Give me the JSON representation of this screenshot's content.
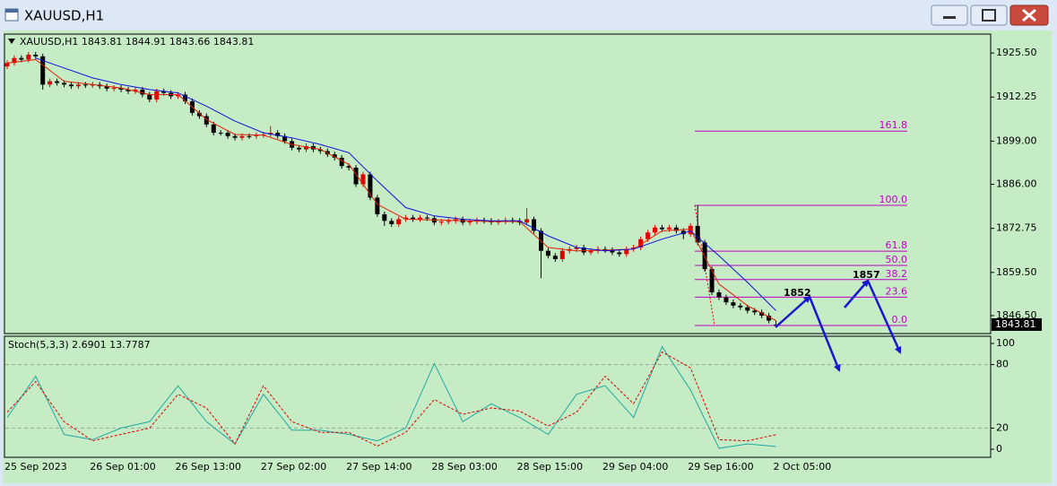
{
  "window": {
    "title": "XAUUSD,H1"
  },
  "chart_data": [
    {
      "type": "candlestick",
      "title": "XAUUSD,H1  1843.81 1844.91 1843.66 1843.81",
      "categories": [
        "25 Sep 2023",
        null,
        null,
        null,
        null,
        null,
        null,
        null,
        null,
        null,
        null,
        null,
        "26 Sep 01:00",
        null,
        null,
        null,
        null,
        null,
        null,
        null,
        null,
        null,
        null,
        null,
        "26 Sep 13:00",
        null,
        null,
        null,
        null,
        null,
        null,
        null,
        null,
        null,
        null,
        null,
        "27 Sep 02:00",
        null,
        null,
        null,
        null,
        null,
        null,
        null,
        null,
        null,
        null,
        null,
        "27 Sep 14:00",
        null,
        null,
        null,
        null,
        null,
        null,
        null,
        null,
        null,
        null,
        null,
        "28 Sep 03:00",
        null,
        null,
        null,
        null,
        null,
        null,
        null,
        null,
        null,
        null,
        null,
        "28 Sep 15:00",
        null,
        null,
        null,
        null,
        null,
        null,
        null,
        null,
        null,
        null,
        null,
        "29 Sep 04:00",
        null,
        null,
        null,
        null,
        null,
        null,
        null,
        null,
        null,
        null,
        null,
        "29 Sep 16:00",
        null,
        null,
        null,
        null,
        null,
        null,
        null,
        null,
        null,
        null,
        null,
        "2 Oct 05:00"
      ],
      "open": [
        1921.5,
        1922.5,
        1924.0,
        1923.5,
        1925.0,
        1924.5,
        1916.0,
        1917.0,
        1916.5,
        1916.0,
        1915.5,
        1916.0,
        1915.8,
        1916.0,
        1915.5,
        1914.8,
        1915.0,
        1914.5,
        1914.0,
        1914.5,
        1913.0,
        1911.5,
        1914.0,
        1913.5,
        1912.5,
        1913.0,
        1911.0,
        1907.5,
        1906.5,
        1904.0,
        1901.5,
        1901.5,
        1900.5,
        1900.0,
        1900.5,
        1900.5,
        1900.8,
        1901.0,
        1901.5,
        1900.5,
        1899.0,
        1897.0,
        1896.5,
        1897.5,
        1896.5,
        1896.0,
        1895.0,
        1894.0,
        1891.5,
        1891.0,
        1886.0,
        1889.0,
        1882.0,
        1877.0,
        1875.0,
        1874.0,
        1875.5,
        1876.0,
        1875.5,
        1876.0,
        1875.8,
        1874.5,
        1874.8,
        1875.0,
        1875.5,
        1874.5,
        1874.8,
        1875.2,
        1875.0,
        1874.6,
        1874.8,
        1875.2,
        1875.0,
        1874.5,
        1875.5,
        1872.0,
        1866.0,
        1864.5,
        1863.5,
        1866.0,
        1866.5,
        1867.0,
        1865.5,
        1866.0,
        1866.5,
        1866.2,
        1865.5,
        1865.0,
        1866.5,
        1867.0,
        1869.5,
        1871.5,
        1873.0,
        1872.5,
        1873.0,
        1872.0,
        1871.0,
        1873.5,
        1868.5,
        1860.5,
        1853.5,
        1852.0,
        1850.5,
        1849.5,
        1849.0,
        1848.0,
        1847.5,
        1846.5,
        1843.81
      ],
      "high": [
        1923.3,
        1924.8,
        1924.8,
        1925.8,
        1925.8,
        1925.3,
        1917.8,
        1917.8,
        1917.3,
        1916.8,
        1916.8,
        1916.8,
        1916.8,
        1916.8,
        1916.3,
        1915.8,
        1915.8,
        1915.3,
        1915.3,
        1915.3,
        1913.8,
        1914.8,
        1914.8,
        1914.3,
        1913.8,
        1913.8,
        1911.8,
        1908.3,
        1907.3,
        1904.8,
        1902.3,
        1902.3,
        1901.3,
        1901.3,
        1901.3,
        1901.6,
        1901.8,
        1903.5,
        1902.3,
        1901.3,
        1899.8,
        1897.8,
        1898.3,
        1898.3,
        1897.3,
        1896.8,
        1895.8,
        1894.8,
        1892.3,
        1891.8,
        1889.8,
        1889.8,
        1882.8,
        1877.8,
        1875.8,
        1876.3,
        1876.8,
        1876.8,
        1876.8,
        1876.8,
        1876.6,
        1875.6,
        1875.8,
        1876.3,
        1876.3,
        1875.6,
        1876.0,
        1876.0,
        1875.8,
        1875.6,
        1876.0,
        1876.0,
        1875.8,
        1878.8,
        1876.3,
        1872.8,
        1866.8,
        1865.3,
        1866.8,
        1867.3,
        1867.8,
        1867.8,
        1866.8,
        1867.3,
        1867.3,
        1867.0,
        1866.3,
        1867.3,
        1867.8,
        1870.3,
        1872.3,
        1873.8,
        1873.8,
        1873.8,
        1873.8,
        1872.8,
        1874.3,
        1879.7,
        1869.3,
        1861.3,
        1854.3,
        1852.8,
        1851.3,
        1850.3,
        1849.8,
        1848.8,
        1848.3,
        1847.3,
        1844.91
      ],
      "low": [
        1920.7,
        1921.7,
        1922.7,
        1922.7,
        1923.7,
        1914.5,
        1915.2,
        1915.7,
        1915.2,
        1914.7,
        1914.7,
        1915.0,
        1915.0,
        1914.7,
        1914.0,
        1914.0,
        1913.7,
        1913.2,
        1913.2,
        1912.2,
        1910.7,
        1910.7,
        1912.7,
        1911.7,
        1911.7,
        1910.2,
        1906.7,
        1905.7,
        1903.2,
        1900.7,
        1900.7,
        1899.7,
        1899.2,
        1899.2,
        1899.7,
        1899.7,
        1900.0,
        1900.2,
        1899.7,
        1898.2,
        1896.2,
        1895.7,
        1895.7,
        1895.7,
        1895.2,
        1894.2,
        1893.2,
        1890.7,
        1890.2,
        1885.2,
        1885.2,
        1881.2,
        1876.2,
        1873.5,
        1873.2,
        1873.2,
        1874.7,
        1874.7,
        1874.7,
        1875.0,
        1873.7,
        1873.7,
        1874.0,
        1874.2,
        1873.7,
        1873.7,
        1874.0,
        1874.2,
        1873.8,
        1873.8,
        1874.0,
        1874.2,
        1873.7,
        1873.7,
        1871.2,
        1857.8,
        1863.7,
        1862.7,
        1862.7,
        1865.2,
        1865.7,
        1864.7,
        1864.7,
        1865.2,
        1865.4,
        1864.7,
        1864.2,
        1864.2,
        1865.7,
        1866.2,
        1868.7,
        1870.7,
        1871.7,
        1871.7,
        1871.2,
        1869.5,
        1870.2,
        1867.7,
        1859.7,
        1852.7,
        1851.2,
        1849.7,
        1848.7,
        1848.2,
        1847.2,
        1846.7,
        1845.7,
        1844.2,
        1843.66
      ],
      "close": [
        1922.5,
        1924.0,
        1923.5,
        1925.0,
        1924.5,
        1916.0,
        1917.0,
        1916.5,
        1916.0,
        1915.5,
        1916.0,
        1915.8,
        1916.0,
        1915.5,
        1914.8,
        1915.0,
        1914.5,
        1914.0,
        1914.5,
        1913.0,
        1911.5,
        1914.0,
        1913.5,
        1912.5,
        1913.0,
        1911.0,
        1907.5,
        1906.5,
        1904.0,
        1901.5,
        1901.5,
        1900.5,
        1900.0,
        1900.5,
        1900.5,
        1900.8,
        1901.0,
        1901.5,
        1900.5,
        1899.0,
        1897.0,
        1896.5,
        1897.5,
        1896.5,
        1896.0,
        1895.0,
        1894.0,
        1891.5,
        1891.0,
        1886.0,
        1889.0,
        1882.0,
        1877.0,
        1875.0,
        1874.0,
        1875.5,
        1876.0,
        1875.5,
        1876.0,
        1875.8,
        1874.5,
        1874.8,
        1875.0,
        1875.5,
        1874.5,
        1874.8,
        1875.2,
        1875.0,
        1874.6,
        1874.8,
        1875.2,
        1875.0,
        1874.5,
        1875.5,
        1872.0,
        1866.0,
        1864.5,
        1863.5,
        1866.0,
        1866.5,
        1867.0,
        1865.5,
        1866.0,
        1866.5,
        1866.2,
        1865.5,
        1865.0,
        1866.5,
        1867.0,
        1869.5,
        1871.5,
        1873.0,
        1872.5,
        1873.0,
        1872.0,
        1871.0,
        1873.5,
        1868.5,
        1860.5,
        1853.5,
        1852.0,
        1850.5,
        1849.5,
        1849.0,
        1848.0,
        1847.5,
        1846.5,
        1845.0,
        1843.81
      ],
      "up_color": "#e00000",
      "down_color": "#000000",
      "overlays": [
        {
          "color": "#e02000",
          "x": [
            0,
            4,
            8,
            12,
            16,
            20,
            24,
            28,
            32,
            36,
            40,
            44,
            48,
            52,
            56,
            60,
            64,
            68,
            72,
            76,
            80,
            84,
            88,
            92,
            96,
            100,
            104,
            108
          ],
          "values": [
            1922.5,
            1923.5,
            1917.0,
            1916.0,
            1915.0,
            1913.0,
            1913.0,
            1905.5,
            1901.0,
            1900.8,
            1898.0,
            1896.5,
            1892.0,
            1880.0,
            1875.5,
            1875.3,
            1875.0,
            1874.8,
            1874.8,
            1867.0,
            1866.0,
            1866.2,
            1866.5,
            1872.0,
            1872.5,
            1856.0,
            1849.5,
            1845.0
          ]
        },
        {
          "color": "#1010e0",
          "x": [
            0,
            4,
            8,
            12,
            16,
            20,
            24,
            28,
            32,
            36,
            40,
            44,
            48,
            52,
            56,
            60,
            64,
            68,
            72,
            76,
            80,
            84,
            88,
            92,
            96,
            100,
            104,
            108
          ],
          "values": [
            null,
            1924.0,
            1921.0,
            1918.0,
            1916.0,
            1914.5,
            1913.5,
            1909.5,
            1905.0,
            1901.5,
            1900.0,
            1898.0,
            1895.5,
            1887.0,
            1879.0,
            1876.5,
            1875.5,
            1875.0,
            1875.0,
            1870.5,
            1867.0,
            1866.0,
            1866.5,
            1869.5,
            1872.0,
            1864.5,
            1856.5,
            1848.0
          ]
        }
      ],
      "ylim": [
        1841.1,
        1931.2
      ],
      "yticks": [
        {
          "value": 1925.5,
          "label": "1925.50"
        },
        {
          "value": 1912.25,
          "label": "1912.25"
        },
        {
          "value": 1899,
          "label": "1899.00"
        },
        {
          "value": 1886,
          "label": "1886.00"
        },
        {
          "value": 1872.75,
          "label": "1872.75"
        },
        {
          "value": 1859.5,
          "label": "1859.50"
        },
        {
          "value": 1846.5,
          "label": "1846.50"
        }
      ],
      "current_price": 1843.81,
      "fibonacci": {
        "color": "#c000c0",
        "levels": [
          {
            "label": "161.8",
            "price": 1902.0
          },
          {
            "label": "100.0",
            "price": 1879.67
          },
          {
            "label": "61.8",
            "price": 1865.87
          },
          {
            "label": "50.0",
            "price": 1861.6
          },
          {
            "label": "38.2",
            "price": 1857.34
          },
          {
            "label": "23.6",
            "price": 1852.07
          },
          {
            "label": "0.0",
            "price": 1843.54
          }
        ]
      },
      "annotations": [
        "1852",
        "1857"
      ]
    },
    {
      "type": "line",
      "title": "Stoch(5,3,3) 2.6901 13.7787",
      "x": [
        0,
        4,
        8,
        12,
        16,
        20,
        24,
        28,
        32,
        36,
        40,
        44,
        48,
        52,
        56,
        60,
        64,
        68,
        72,
        76,
        80,
        84,
        88,
        92,
        96,
        100,
        104,
        108
      ],
      "series": [
        {
          "color": "#20a8a0",
          "values": [
            30,
            69,
            14,
            9,
            20,
            26,
            60,
            26,
            5,
            52,
            18,
            18,
            14,
            8,
            20,
            81,
            26,
            43,
            30,
            14,
            52,
            60,
            30,
            97,
            56,
            1,
            5,
            2.6901
          ]
        },
        {
          "color": "#e00000",
          "dash": true,
          "values": [
            35,
            64,
            26,
            8,
            14,
            20,
            52,
            39,
            5,
            60,
            26,
            16,
            16,
            3,
            16,
            47,
            33,
            39,
            36,
            22,
            35,
            69,
            43,
            92,
            77,
            9,
            8,
            13.7787
          ]
        }
      ],
      "ylim": [
        -7.6,
        106.8
      ],
      "yticks": [
        100,
        80,
        20,
        0
      ],
      "levels": [
        80,
        20
      ]
    }
  ]
}
